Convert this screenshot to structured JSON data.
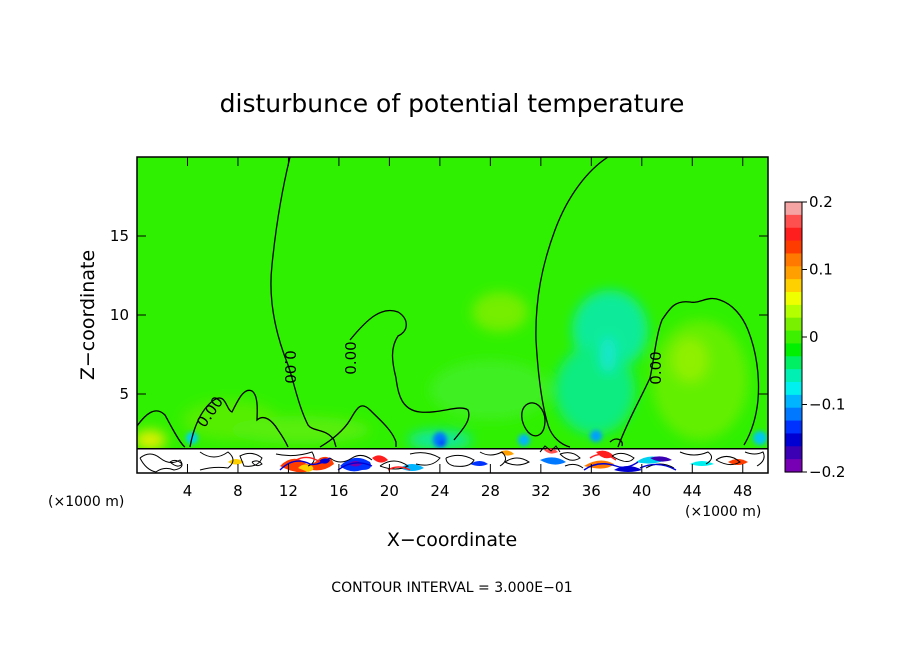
{
  "chart_data": {
    "type": "heatmap",
    "title": "disturbunce of potential temperature",
    "xlabel": "X−coordinate",
    "ylabel": "Z−coordinate",
    "x_unit_left": "(×1000 m)",
    "x_unit_right": "(×1000 m)",
    "xlim": [
      0,
      50
    ],
    "ylim": [
      0,
      20
    ],
    "x_ticks": [
      4,
      8,
      12,
      16,
      20,
      24,
      28,
      32,
      36,
      40,
      44,
      48
    ],
    "x_tick_labels": [
      "4",
      "8",
      "12",
      "16",
      "20",
      "24",
      "28",
      "32",
      "36",
      "40",
      "44",
      "48"
    ],
    "y_ticks": [
      5,
      10,
      15
    ],
    "y_tick_labels": [
      "5",
      "10",
      "15"
    ],
    "colorbar": {
      "range": [
        -0.2,
        0.2
      ],
      "tick_values": [
        0.2,
        0.1,
        0,
        -0.1,
        -0.2
      ],
      "tick_labels": [
        "0.2",
        "0.1",
        "0",
        "−0.1",
        "−0.2"
      ],
      "colors": [
        "#f5a3a3",
        "#ff5050",
        "#ff1e1e",
        "#ff3c00",
        "#ff7800",
        "#ffa000",
        "#ffd000",
        "#f0ff00",
        "#b4ff00",
        "#78f000",
        "#3cf000",
        "#00f000",
        "#00f064",
        "#00f0b4",
        "#00f0f0",
        "#00b4ff",
        "#0078ff",
        "#0032ff",
        "#0000d2",
        "#3c00b4",
        "#7800b4"
      ]
    },
    "contour_labels": [
      {
        "text": "0.00",
        "x": 5.8,
        "z": 3.9,
        "angle": -55
      },
      {
        "text": "0.00",
        "x": 12.3,
        "z": 6.6,
        "angle": 90
      },
      {
        "text": "0.00",
        "x": 16.7,
        "z": 6.9,
        "angle": -90
      },
      {
        "text": "0.00",
        "x": 40.3,
        "z": 6.6,
        "angle": -90
      }
    ],
    "note": "CONTOUR INTERVAL = 3.000E−01"
  }
}
